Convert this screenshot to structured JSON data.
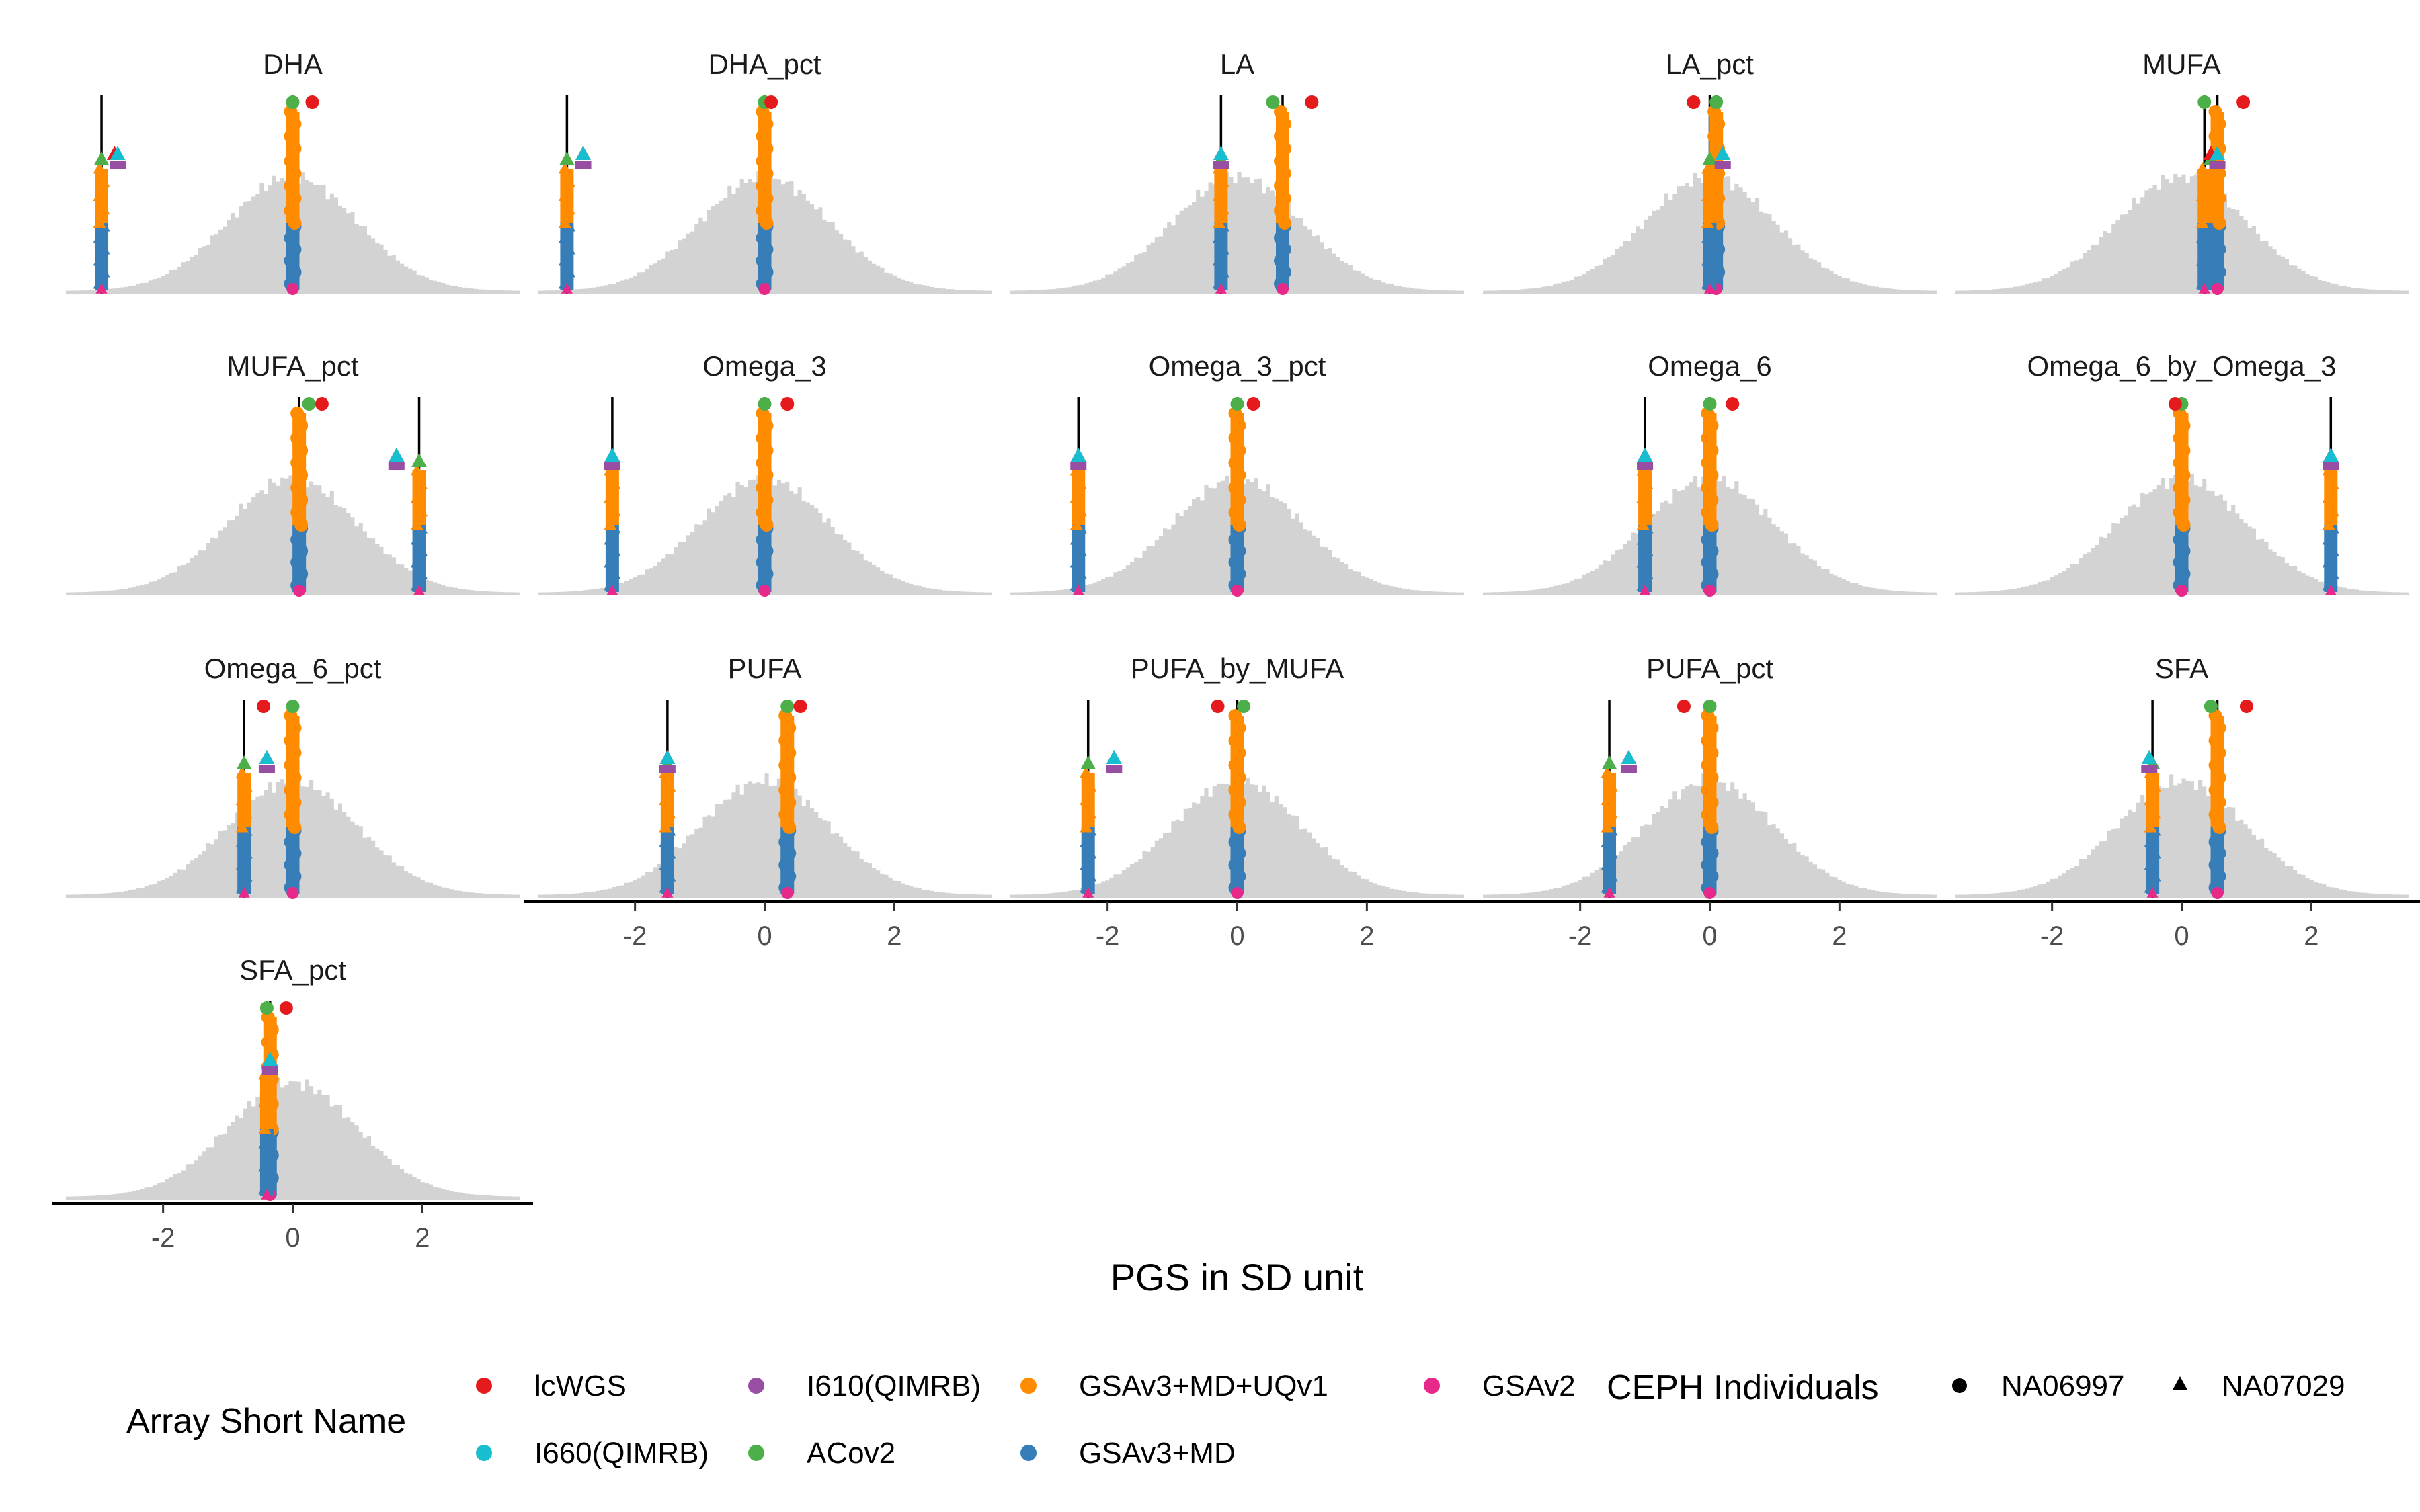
{
  "colors": {
    "lcWGS": "#E41A1C",
    "I660(QIMRB)": "#17BECF",
    "I610(QIMRB)": "#984EA3",
    "ACov2": "#4DAF4A",
    "GSAv3+MD+UQv1": "#FF8C00",
    "GSAv3+MD": "#377EB8",
    "GSAv2": "#E7298A",
    "histogram": "#D3D3D3",
    "line": "#000000"
  },
  "chart_data": {
    "type": "histogram",
    "xlabel": "PGS in SD unit",
    "xlim": [
      -3.5,
      3.5
    ],
    "x_ticks": [
      -2,
      0,
      2
    ],
    "x_tick_labels": [
      "-2",
      "0",
      "2"
    ],
    "legend": {
      "position": "bottom",
      "array_title": "Array Short Name",
      "array_items": [
        "lcWGS",
        "I660(QIMRB)",
        "I610(QIMRB)",
        "ACov2",
        "GSAv3+MD+UQv1",
        "GSAv3+MD",
        "GSAv2"
      ],
      "shape_title": "CEPH Individuals",
      "shape_items": [
        {
          "label": "NA06997",
          "shape": "circle"
        },
        {
          "label": "NA07029",
          "shape": "triangle"
        }
      ]
    },
    "panels": [
      {
        "title": "DHA",
        "c1": 0.0,
        "c2": -2.95,
        "lc1": 0.3,
        "lc2": -2.75,
        "ac1": 0.0,
        "ac2": -2.95,
        "i1": 0.0,
        "i2": -2.7
      },
      {
        "title": "DHA_pct",
        "c1": 0.0,
        "c2": -3.05,
        "lc1": 0.1,
        "lc2": -2.8,
        "ac1": 0.0,
        "ac2": -3.05,
        "i1": 0.0,
        "i2": -2.8
      },
      {
        "title": "LA",
        "c1": 0.7,
        "c2": -0.25,
        "lc1": 1.15,
        "lc2": -0.25,
        "ac1": 0.55,
        "ac2": -0.25,
        "i1": 0.7,
        "i2": -0.25
      },
      {
        "title": "LA_pct",
        "c1": 0.1,
        "c2": 0.0,
        "lc1": -0.25,
        "lc2": 0.2,
        "ac1": 0.1,
        "ac2": 0.0,
        "i1": 0.1,
        "i2": 0.2
      },
      {
        "title": "MUFA",
        "c1": 0.55,
        "c2": 0.35,
        "lc1": 0.95,
        "lc2": 0.45,
        "ac1": 0.35,
        "ac2": 0.45,
        "i1": 0.45,
        "i2": 0.55
      },
      {
        "title": "MUFA_pct",
        "c1": 0.1,
        "c2": 1.95,
        "lc1": 0.45,
        "lc2": 1.6,
        "ac1": 0.25,
        "ac2": 1.95,
        "i1": 0.25,
        "i2": 1.6
      },
      {
        "title": "Omega_3",
        "c1": 0.0,
        "c2": -2.35,
        "lc1": 0.35,
        "lc2": -2.35,
        "ac1": 0.0,
        "ac2": -2.35,
        "i1": 0.0,
        "i2": -2.35
      },
      {
        "title": "Omega_3_pct",
        "c1": 0.0,
        "c2": -2.45,
        "lc1": 0.25,
        "lc2": -2.45,
        "ac1": 0.0,
        "ac2": -2.45,
        "i1": 0.0,
        "i2": -2.45
      },
      {
        "title": "Omega_6",
        "c1": 0.0,
        "c2": -1.0,
        "lc1": 0.35,
        "lc2": -1.0,
        "ac1": 0.0,
        "ac2": -1.0,
        "i1": 0.0,
        "i2": -1.0
      },
      {
        "title": "Omega_6_by_Omega_3",
        "c1": 0.0,
        "c2": 2.3,
        "lc1": -0.1,
        "lc2": 2.3,
        "ac1": 0.0,
        "ac2": 2.3,
        "i1": 0.0,
        "i2": 2.3
      },
      {
        "title": "Omega_6_pct",
        "c1": 0.0,
        "c2": -0.75,
        "lc1": -0.45,
        "lc2": -0.4,
        "ac1": 0.0,
        "ac2": -0.75,
        "i1": 0.0,
        "i2": -0.4
      },
      {
        "title": "PUFA",
        "c1": 0.35,
        "c2": -1.5,
        "lc1": 0.55,
        "lc2": -1.5,
        "ac1": 0.35,
        "ac2": -1.5,
        "i1": 0.35,
        "i2": -1.5
      },
      {
        "title": "PUFA_by_MUFA",
        "c1": 0.0,
        "c2": -2.3,
        "lc1": -0.3,
        "lc2": -1.9,
        "ac1": 0.1,
        "ac2": -2.3,
        "i1": 0.1,
        "i2": -1.9
      },
      {
        "title": "PUFA_pct",
        "c1": 0.0,
        "c2": -1.55,
        "lc1": -0.4,
        "lc2": -1.25,
        "ac1": 0.0,
        "ac2": -1.55,
        "i1": 0.0,
        "i2": -1.25
      },
      {
        "title": "SFA",
        "c1": 0.55,
        "c2": -0.45,
        "lc1": 1.0,
        "lc2": -0.5,
        "ac1": 0.45,
        "ac2": -0.45,
        "i1": 0.55,
        "i2": -0.5
      },
      {
        "title": "SFA_pct",
        "c1": -0.35,
        "c2": -0.4,
        "lc1": -0.1,
        "lc2": -0.35,
        "ac1": -0.4,
        "ac2": -0.35,
        "i1": -0.4,
        "i2": -0.35
      }
    ]
  }
}
